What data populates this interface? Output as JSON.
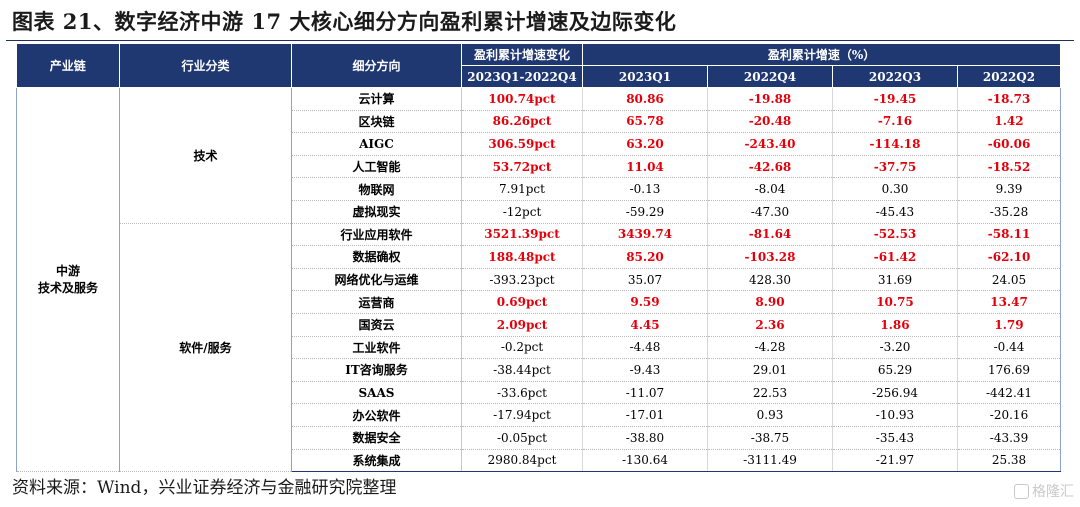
{
  "title": "图表 21、数字经济中游 17 大核心细分方向盈利累计增速及边际变化",
  "header": {
    "chain": "产业链",
    "industry": "行业分类",
    "sub": "细分方向",
    "group_change": "盈利累计增速变化",
    "group_growth": "盈利累计增速（%）",
    "cols": [
      "2023Q1-2022Q4",
      "2023Q1",
      "2022Q4",
      "2022Q3",
      "2022Q2"
    ]
  },
  "chain": {
    "line1": "中游",
    "line2": "技术及服务"
  },
  "industries": [
    "技术",
    "软件/服务"
  ],
  "rows": [
    {
      "name": "云计算",
      "change": "100.74pct",
      "q1_23": "80.86",
      "q4_22": "-19.88",
      "q3_22": "-19.45",
      "q2_22": "-18.73",
      "hl": [
        true,
        true,
        true,
        true,
        true
      ]
    },
    {
      "name": "区块链",
      "change": "86.26pct",
      "q1_23": "65.78",
      "q4_22": "-20.48",
      "q3_22": "-7.16",
      "q2_22": "1.42",
      "hl": [
        true,
        true,
        true,
        true,
        true
      ]
    },
    {
      "name": "AIGC",
      "change": "306.59pct",
      "q1_23": "63.20",
      "q4_22": "-243.40",
      "q3_22": "-114.18",
      "q2_22": "-60.06",
      "hl": [
        true,
        true,
        true,
        true,
        true
      ]
    },
    {
      "name": "人工智能",
      "change": "53.72pct",
      "q1_23": "11.04",
      "q4_22": "-42.68",
      "q3_22": "-37.75",
      "q2_22": "-18.52",
      "hl": [
        true,
        true,
        true,
        true,
        true
      ]
    },
    {
      "name": "物联网",
      "change": "7.91pct",
      "q1_23": "-0.13",
      "q4_22": "-8.04",
      "q3_22": "0.30",
      "q2_22": "9.39",
      "hl": [
        false,
        false,
        false,
        false,
        false
      ]
    },
    {
      "name": "虚拟现实",
      "change": "-12pct",
      "q1_23": "-59.29",
      "q4_22": "-47.30",
      "q3_22": "-45.43",
      "q2_22": "-35.28",
      "hl": [
        false,
        false,
        false,
        false,
        false
      ]
    },
    {
      "name": "行业应用软件",
      "change": "3521.39pct",
      "q1_23": "3439.74",
      "q4_22": "-81.64",
      "q3_22": "-52.53",
      "q2_22": "-58.11",
      "hl": [
        true,
        true,
        true,
        true,
        true
      ]
    },
    {
      "name": "数据确权",
      "change": "188.48pct",
      "q1_23": "85.20",
      "q4_22": "-103.28",
      "q3_22": "-61.42",
      "q2_22": "-62.10",
      "hl": [
        true,
        true,
        true,
        true,
        true
      ]
    },
    {
      "name": "网络优化与运维",
      "change": "-393.23pct",
      "q1_23": "35.07",
      "q4_22": "428.30",
      "q3_22": "31.69",
      "q2_22": "24.05",
      "hl": [
        false,
        false,
        false,
        false,
        false
      ]
    },
    {
      "name": "运营商",
      "change": "0.69pct",
      "q1_23": "9.59",
      "q4_22": "8.90",
      "q3_22": "10.75",
      "q2_22": "13.47",
      "hl": [
        true,
        true,
        true,
        true,
        true
      ]
    },
    {
      "name": "国资云",
      "change": "2.09pct",
      "q1_23": "4.45",
      "q4_22": "2.36",
      "q3_22": "1.86",
      "q2_22": "1.79",
      "hl": [
        true,
        true,
        true,
        true,
        true
      ]
    },
    {
      "name": "工业软件",
      "change": "-0.2pct",
      "q1_23": "-4.48",
      "q4_22": "-4.28",
      "q3_22": "-3.20",
      "q2_22": "-0.44",
      "hl": [
        false,
        false,
        false,
        false,
        false
      ]
    },
    {
      "name": "IT咨询服务",
      "change": "-38.44pct",
      "q1_23": "-9.43",
      "q4_22": "29.01",
      "q3_22": "65.29",
      "q2_22": "176.69",
      "hl": [
        false,
        false,
        false,
        false,
        false
      ]
    },
    {
      "name": "SAAS",
      "change": "-33.6pct",
      "q1_23": "-11.07",
      "q4_22": "22.53",
      "q3_22": "-256.94",
      "q2_22": "-442.41",
      "hl": [
        false,
        false,
        false,
        false,
        false
      ]
    },
    {
      "name": "办公软件",
      "change": "-17.94pct",
      "q1_23": "-17.01",
      "q4_22": "0.93",
      "q3_22": "-10.93",
      "q2_22": "-20.16",
      "hl": [
        false,
        false,
        false,
        false,
        false
      ]
    },
    {
      "name": "数据安全",
      "change": "-0.05pct",
      "q1_23": "-38.80",
      "q4_22": "-38.75",
      "q3_22": "-35.43",
      "q2_22": "-43.39",
      "hl": [
        false,
        false,
        false,
        false,
        false
      ]
    },
    {
      "name": "系统集成",
      "change": "2980.84pct",
      "q1_23": "-130.64",
      "q4_22": "-3111.49",
      "q3_22": "-21.97",
      "q2_22": "25.38",
      "hl": [
        false,
        false,
        false,
        false,
        false
      ]
    }
  ],
  "source": "资料来源：Wind，兴业证券经济与金融研究院整理",
  "watermark": "格隆汇",
  "colors": {
    "header_bg": "#1f3871",
    "highlight": "#e3000b"
  }
}
